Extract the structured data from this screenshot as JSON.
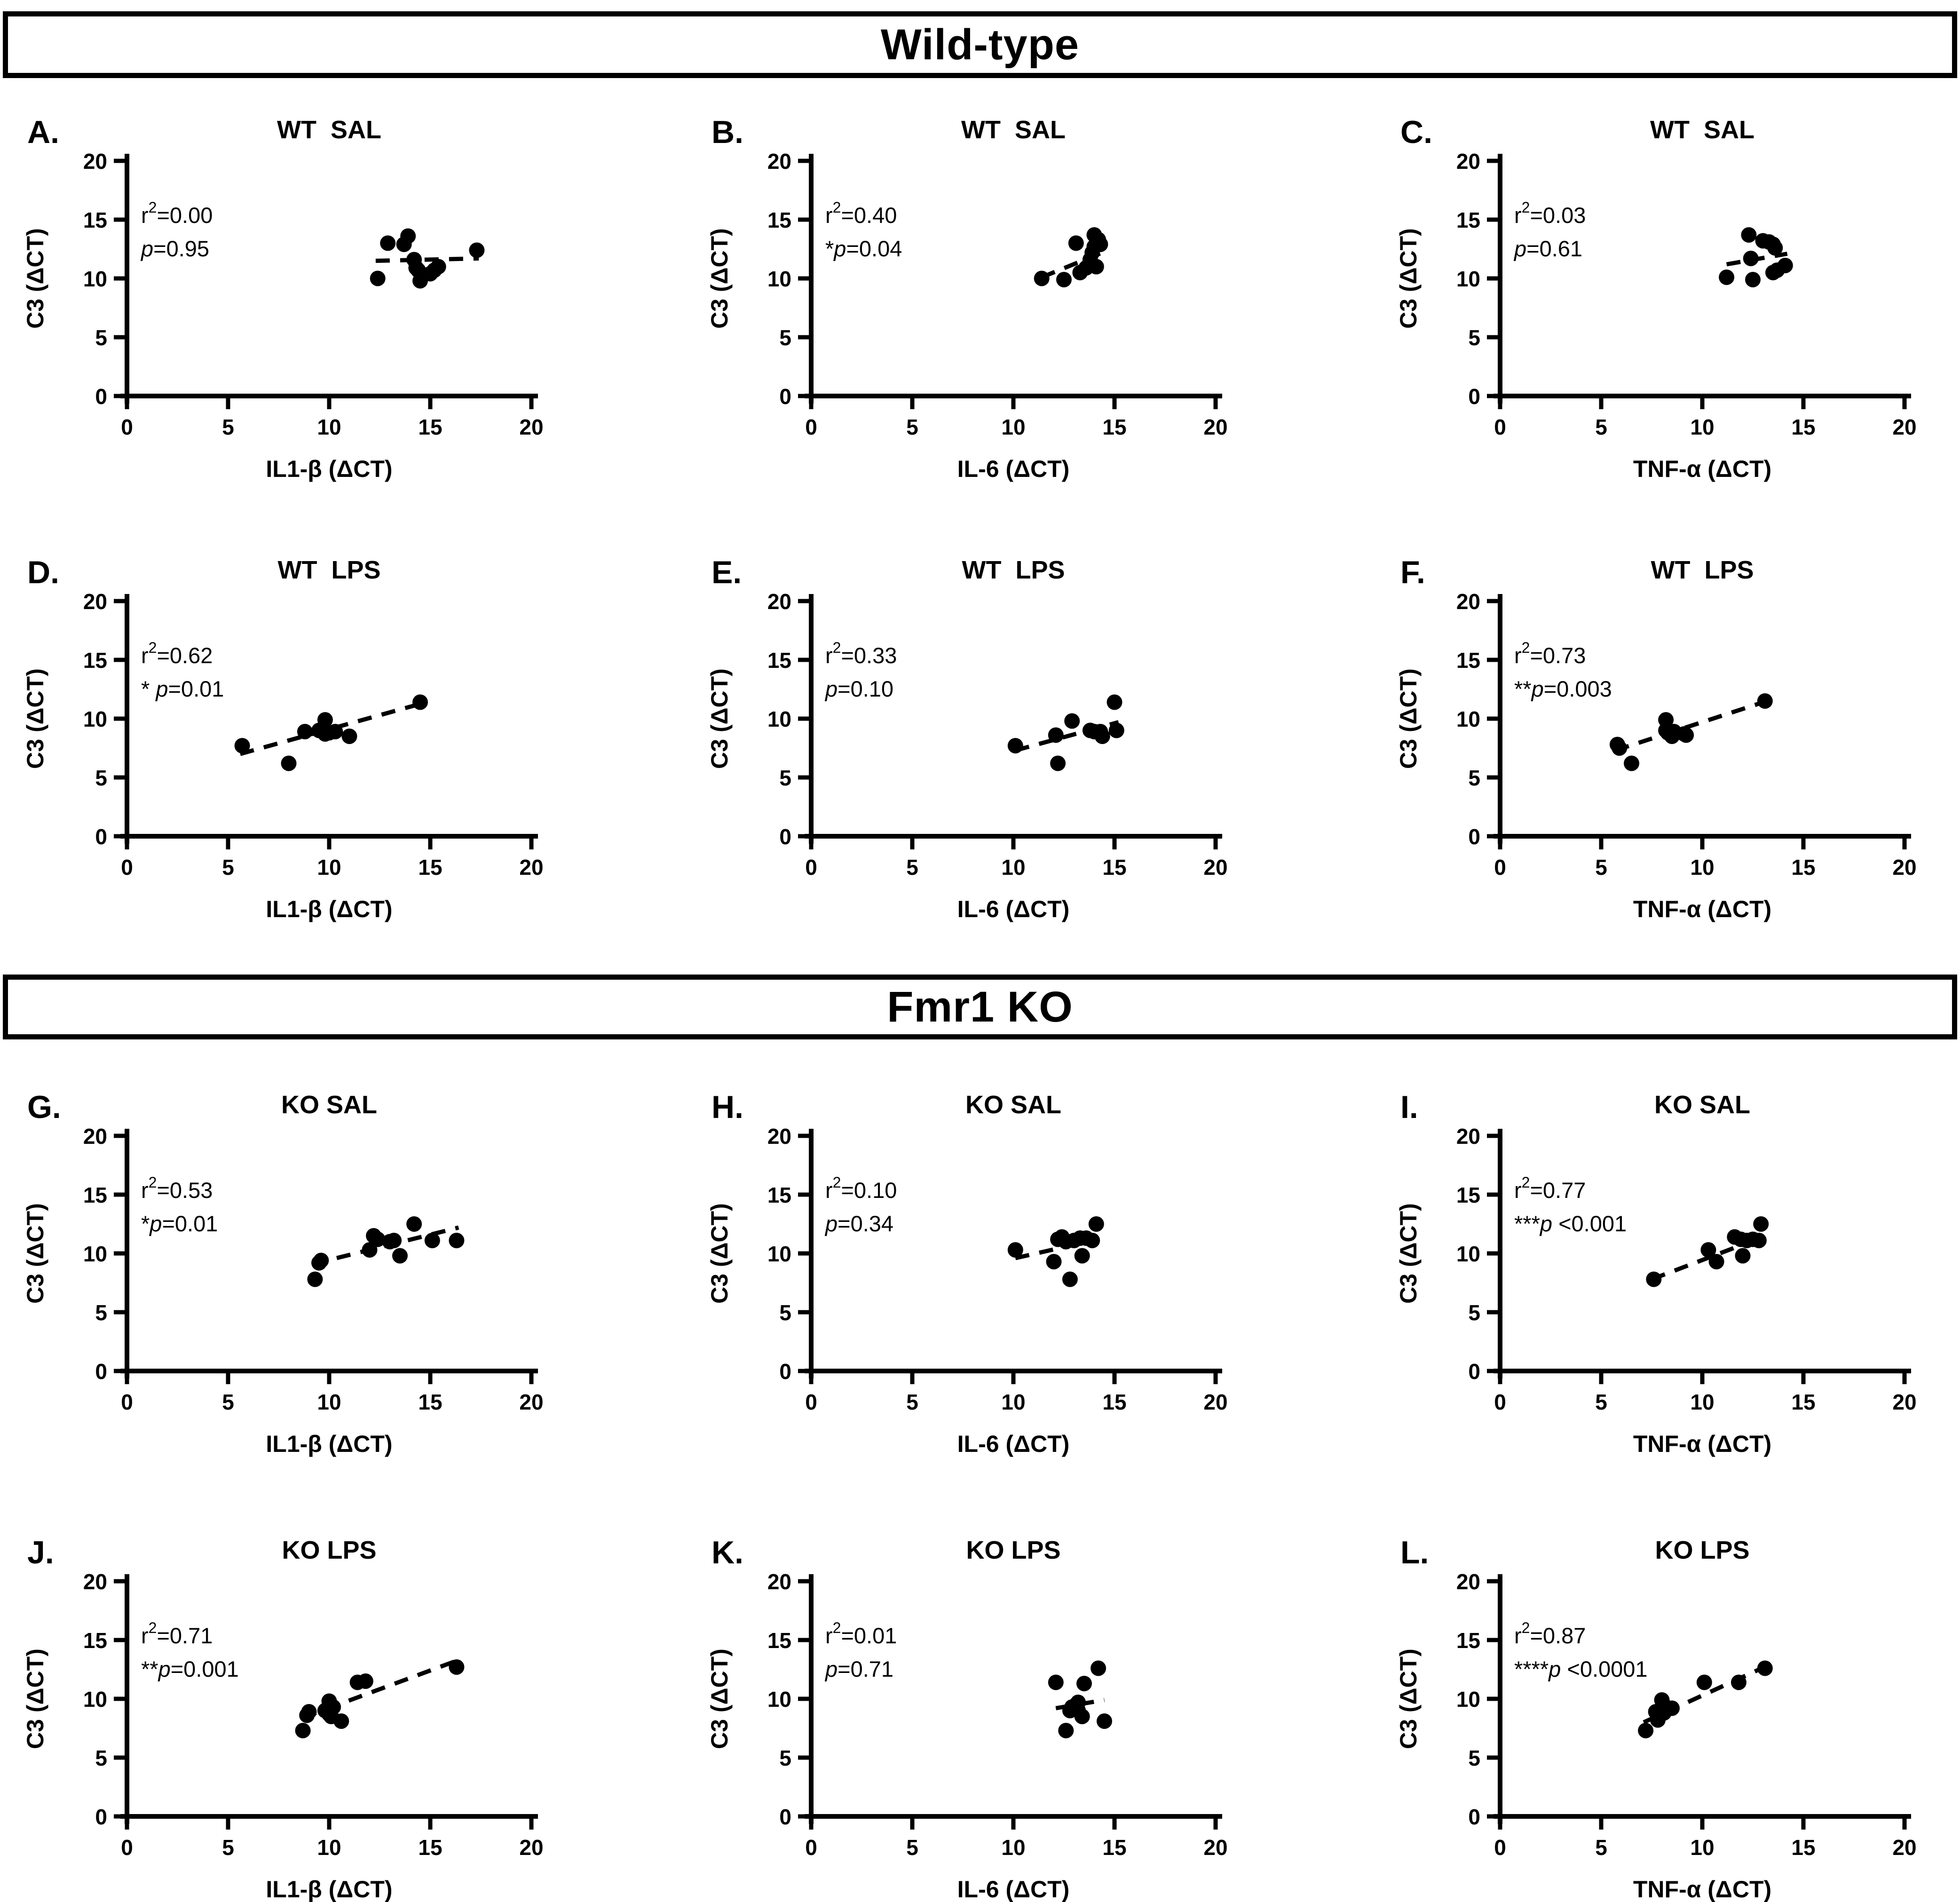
{
  "colors": {
    "foreground": "#000000",
    "background": "#ffffff"
  },
  "sections": [
    {
      "label": "Wild-type"
    },
    {
      "label": "Fmr1 KO"
    }
  ],
  "chart_data": [
    {
      "panel_label": "A.",
      "section": "Wild-type",
      "type": "scatter",
      "title": "WT  SAL",
      "xlabel": "IL1-β (ΔCT)",
      "ylabel": "C3 (ΔCT)",
      "xlim": [
        0,
        20
      ],
      "ylim": [
        0,
        20
      ],
      "xticks": [
        0,
        5,
        10,
        15,
        20
      ],
      "yticks": [
        0,
        5,
        10,
        15,
        20
      ],
      "stats": {
        "r2": "0.00",
        "stars": "",
        "p": "=0.95"
      },
      "points": [
        [
          12.4,
          10.0
        ],
        [
          12.9,
          13.0
        ],
        [
          13.7,
          12.9
        ],
        [
          13.9,
          13.6
        ],
        [
          14.2,
          11.6
        ],
        [
          14.3,
          10.9
        ],
        [
          14.4,
          10.7
        ],
        [
          14.5,
          9.8
        ],
        [
          15.0,
          10.4
        ],
        [
          15.2,
          10.7
        ],
        [
          15.4,
          11.0
        ],
        [
          17.3,
          12.4
        ]
      ],
      "trend": {
        "x1": 12.3,
        "y1": 11.5,
        "x2": 17.4,
        "y2": 11.7
      }
    },
    {
      "panel_label": "B.",
      "section": "Wild-type",
      "type": "scatter",
      "title": "WT  SAL",
      "xlabel": "IL-6 (ΔCT)",
      "ylabel": "C3 (ΔCT)",
      "xlim": [
        0,
        20
      ],
      "ylim": [
        0,
        20
      ],
      "xticks": [
        0,
        5,
        10,
        15,
        20
      ],
      "yticks": [
        0,
        5,
        10,
        15,
        20
      ],
      "stats": {
        "r2": "0.40",
        "stars": "*",
        "p": "=0.04"
      },
      "points": [
        [
          11.4,
          10.0
        ],
        [
          12.5,
          9.9
        ],
        [
          13.1,
          13.0
        ],
        [
          13.3,
          10.5
        ],
        [
          13.6,
          10.9
        ],
        [
          13.8,
          11.6
        ],
        [
          13.9,
          12.2
        ],
        [
          14.0,
          13.7
        ],
        [
          14.0,
          12.7
        ],
        [
          14.1,
          11.0
        ],
        [
          14.2,
          13.3
        ],
        [
          14.3,
          12.9
        ]
      ],
      "trend": {
        "x1": 11.4,
        "y1": 10.1,
        "x2": 14.4,
        "y2": 12.2
      }
    },
    {
      "panel_label": "C.",
      "section": "Wild-type",
      "type": "scatter",
      "title": "WT  SAL",
      "xlabel": "TNF-α (ΔCT)",
      "ylabel": "C3 (ΔCT)",
      "xlim": [
        0,
        20
      ],
      "ylim": [
        0,
        20
      ],
      "xticks": [
        0,
        5,
        10,
        15,
        20
      ],
      "yticks": [
        0,
        5,
        10,
        15,
        20
      ],
      "stats": {
        "r2": "0.03",
        "stars": "",
        "p": "=0.61"
      },
      "points": [
        [
          11.2,
          10.1
        ],
        [
          12.3,
          13.7
        ],
        [
          12.4,
          11.7
        ],
        [
          12.5,
          9.9
        ],
        [
          13.0,
          13.2
        ],
        [
          13.3,
          13.1
        ],
        [
          13.5,
          12.9
        ],
        [
          13.5,
          10.5
        ],
        [
          13.6,
          12.6
        ],
        [
          13.7,
          10.7
        ],
        [
          14.1,
          11.1
        ]
      ],
      "trend": {
        "x1": 11.2,
        "y1": 11.2,
        "x2": 14.2,
        "y2": 12.1
      }
    },
    {
      "panel_label": "D.",
      "section": "Wild-type",
      "type": "scatter",
      "title": "WT  LPS",
      "xlabel": "IL1-β (ΔCT)",
      "ylabel": "C3 (ΔCT)",
      "xlim": [
        0,
        20
      ],
      "ylim": [
        0,
        20
      ],
      "xticks": [
        0,
        5,
        10,
        15,
        20
      ],
      "yticks": [
        0,
        5,
        10,
        15,
        20
      ],
      "stats": {
        "r2": "0.62",
        "stars": "* ",
        "p": "=0.01"
      },
      "points": [
        [
          5.7,
          7.7
        ],
        [
          8.0,
          6.2
        ],
        [
          8.8,
          8.9
        ],
        [
          9.5,
          9.0
        ],
        [
          9.8,
          9.9
        ],
        [
          9.8,
          8.7
        ],
        [
          10.0,
          8.8
        ],
        [
          10.3,
          8.9
        ],
        [
          11.0,
          8.5
        ],
        [
          14.5,
          11.4
        ]
      ],
      "trend": {
        "x1": 5.6,
        "y1": 7.0,
        "x2": 14.6,
        "y2": 11.3
      }
    },
    {
      "panel_label": "E.",
      "section": "Wild-type",
      "type": "scatter",
      "title": "WT  LPS",
      "xlabel": "IL-6 (ΔCT)",
      "ylabel": "C3 (ΔCT)",
      "xlim": [
        0,
        20
      ],
      "ylim": [
        0,
        20
      ],
      "xticks": [
        0,
        5,
        10,
        15,
        20
      ],
      "yticks": [
        0,
        5,
        10,
        15,
        20
      ],
      "stats": {
        "r2": "0.33",
        "stars": "",
        "p": "=0.10"
      },
      "points": [
        [
          10.1,
          7.7
        ],
        [
          12.1,
          8.6
        ],
        [
          12.2,
          6.2
        ],
        [
          12.9,
          9.8
        ],
        [
          13.8,
          9.0
        ],
        [
          14.0,
          8.9
        ],
        [
          14.3,
          8.9
        ],
        [
          14.4,
          8.5
        ],
        [
          15.0,
          11.4
        ],
        [
          15.1,
          9.0
        ]
      ],
      "trend": {
        "x1": 10.1,
        "y1": 7.3,
        "x2": 15.2,
        "y2": 9.7
      }
    },
    {
      "panel_label": "F.",
      "section": "Wild-type",
      "type": "scatter",
      "title": "WT  LPS",
      "xlabel": "TNF-α (ΔCT)",
      "ylabel": "C3 (ΔCT)",
      "xlim": [
        0,
        20
      ],
      "ylim": [
        0,
        20
      ],
      "xticks": [
        0,
        5,
        10,
        15,
        20
      ],
      "yticks": [
        0,
        5,
        10,
        15,
        20
      ],
      "stats": {
        "r2": "0.73",
        "stars": "**",
        "p": "=0.003"
      },
      "points": [
        [
          5.8,
          7.8
        ],
        [
          5.9,
          7.5
        ],
        [
          6.5,
          6.2
        ],
        [
          8.2,
          9.9
        ],
        [
          8.2,
          9.0
        ],
        [
          8.3,
          8.8
        ],
        [
          8.5,
          8.5
        ],
        [
          8.6,
          8.9
        ],
        [
          9.1,
          8.7
        ],
        [
          9.2,
          8.6
        ],
        [
          13.1,
          11.5
        ]
      ],
      "trend": {
        "x1": 5.7,
        "y1": 7.3,
        "x2": 13.2,
        "y2": 11.5
      }
    },
    {
      "panel_label": "G.",
      "section": "Fmr1 KO",
      "type": "scatter",
      "title": "KO SAL",
      "xlabel": "IL1-β (ΔCT)",
      "ylabel": "C3 (ΔCT)",
      "xlim": [
        0,
        20
      ],
      "ylim": [
        0,
        20
      ],
      "xticks": [
        0,
        5,
        10,
        15,
        20
      ],
      "yticks": [
        0,
        5,
        10,
        15,
        20
      ],
      "stats": {
        "r2": "0.53",
        "stars": "*",
        "p": "=0.01"
      },
      "points": [
        [
          9.3,
          7.8
        ],
        [
          9.5,
          9.2
        ],
        [
          9.6,
          9.4
        ],
        [
          12.0,
          10.3
        ],
        [
          12.2,
          11.5
        ],
        [
          12.4,
          11.2
        ],
        [
          13.0,
          11.0
        ],
        [
          13.2,
          11.1
        ],
        [
          13.5,
          9.8
        ],
        [
          14.2,
          12.5
        ],
        [
          15.1,
          11.1
        ],
        [
          16.3,
          11.1
        ]
      ],
      "trend": {
        "x1": 9.2,
        "y1": 9.1,
        "x2": 16.4,
        "y2": 12.2
      }
    },
    {
      "panel_label": "H.",
      "section": "Fmr1 KO",
      "type": "scatter",
      "title": "KO SAL",
      "xlabel": "IL-6 (ΔCT)",
      "ylabel": "C3 (ΔCT)",
      "xlim": [
        0,
        20
      ],
      "ylim": [
        0,
        20
      ],
      "xticks": [
        0,
        5,
        10,
        15,
        20
      ],
      "yticks": [
        0,
        5,
        10,
        15,
        20
      ],
      "stats": {
        "r2": "0.10",
        "stars": "",
        "p": "=0.34"
      },
      "points": [
        [
          10.1,
          10.3
        ],
        [
          12.0,
          9.3
        ],
        [
          12.2,
          11.2
        ],
        [
          12.4,
          11.4
        ],
        [
          12.6,
          11.0
        ],
        [
          12.8,
          7.8
        ],
        [
          13.0,
          11.1
        ],
        [
          13.3,
          11.3
        ],
        [
          13.4,
          9.8
        ],
        [
          13.6,
          11.3
        ],
        [
          13.9,
          11.1
        ],
        [
          14.1,
          12.5
        ]
      ],
      "trend": {
        "x1": 10.1,
        "y1": 9.6,
        "x2": 14.2,
        "y2": 11.2
      }
    },
    {
      "panel_label": "I.",
      "section": "Fmr1 KO",
      "type": "scatter",
      "title": "KO SAL",
      "xlabel": "TNF-α (ΔCT)",
      "ylabel": "C3 (ΔCT)",
      "xlim": [
        0,
        20
      ],
      "ylim": [
        0,
        20
      ],
      "xticks": [
        0,
        5,
        10,
        15,
        20
      ],
      "yticks": [
        0,
        5,
        10,
        15,
        20
      ],
      "stats": {
        "r2": "0.77",
        "stars": "***",
        "p": " <0.001"
      },
      "points": [
        [
          7.6,
          7.8
        ],
        [
          10.3,
          10.3
        ],
        [
          10.7,
          9.3
        ],
        [
          11.6,
          11.4
        ],
        [
          11.9,
          11.2
        ],
        [
          12.0,
          9.8
        ],
        [
          12.2,
          11.1
        ],
        [
          12.5,
          11.2
        ],
        [
          12.8,
          11.1
        ],
        [
          12.9,
          12.5
        ]
      ],
      "trend": {
        "x1": 7.5,
        "y1": 7.8,
        "x2": 13.0,
        "y2": 11.4
      }
    },
    {
      "panel_label": "J.",
      "section": "Fmr1 KO",
      "type": "scatter",
      "title": "KO LPS",
      "xlabel": "IL1-β (ΔCT)",
      "ylabel": "C3 (ΔCT)",
      "xlim": [
        0,
        20
      ],
      "ylim": [
        0,
        20
      ],
      "xticks": [
        0,
        5,
        10,
        15,
        20
      ],
      "yticks": [
        0,
        5,
        10,
        15,
        20
      ],
      "stats": {
        "r2": "0.71",
        "stars": "**",
        "p": "=0.001"
      },
      "points": [
        [
          8.7,
          7.3
        ],
        [
          8.9,
          8.6
        ],
        [
          9.0,
          8.9
        ],
        [
          9.8,
          9.0
        ],
        [
          10.0,
          8.7
        ],
        [
          10.0,
          9.8
        ],
        [
          10.1,
          8.5
        ],
        [
          10.2,
          9.3
        ],
        [
          10.6,
          8.1
        ],
        [
          11.4,
          11.4
        ],
        [
          11.8,
          11.5
        ],
        [
          16.3,
          12.7
        ]
      ],
      "trend": {
        "x1": 8.7,
        "y1": 8.4,
        "x2": 16.4,
        "y2": 13.3
      }
    },
    {
      "panel_label": "K.",
      "section": "Fmr1 KO",
      "type": "scatter",
      "title": "KO LPS",
      "xlabel": "IL-6 (ΔCT)",
      "ylabel": "C3 (ΔCT)",
      "xlim": [
        0,
        20
      ],
      "ylim": [
        0,
        20
      ],
      "xticks": [
        0,
        5,
        10,
        15,
        20
      ],
      "yticks": [
        0,
        5,
        10,
        15,
        20
      ],
      "stats": {
        "r2": "0.01",
        "stars": "",
        "p": "=0.71"
      },
      "points": [
        [
          12.1,
          11.4
        ],
        [
          12.6,
          7.3
        ],
        [
          12.8,
          9.0
        ],
        [
          12.9,
          9.3
        ],
        [
          13.1,
          9.5
        ],
        [
          13.2,
          9.7
        ],
        [
          13.2,
          9.0
        ],
        [
          13.4,
          8.5
        ],
        [
          13.5,
          11.3
        ],
        [
          14.2,
          12.6
        ],
        [
          14.5,
          8.1
        ]
      ],
      "trend": {
        "x1": 12.1,
        "y1": 9.2,
        "x2": 14.5,
        "y2": 9.9
      }
    },
    {
      "panel_label": "L.",
      "section": "Fmr1 KO",
      "type": "scatter",
      "title": "KO LPS",
      "xlabel": "TNF-α (ΔCT)",
      "ylabel": "C3 (ΔCT)",
      "xlim": [
        0,
        20
      ],
      "ylim": [
        0,
        20
      ],
      "xticks": [
        0,
        5,
        10,
        15,
        20
      ],
      "yticks": [
        0,
        5,
        10,
        15,
        20
      ],
      "stats": {
        "r2": "0.87",
        "stars": "****",
        "p": " <0.0001"
      },
      "points": [
        [
          7.2,
          7.3
        ],
        [
          7.7,
          8.9
        ],
        [
          7.8,
          8.2
        ],
        [
          7.9,
          8.7
        ],
        [
          8.0,
          9.9
        ],
        [
          8.1,
          8.8
        ],
        [
          8.2,
          9.3
        ],
        [
          8.5,
          9.2
        ],
        [
          10.1,
          11.4
        ],
        [
          11.8,
          11.4
        ],
        [
          13.1,
          12.6
        ]
      ],
      "trend": {
        "x1": 7.1,
        "y1": 8.0,
        "x2": 13.2,
        "y2": 12.8
      }
    }
  ]
}
